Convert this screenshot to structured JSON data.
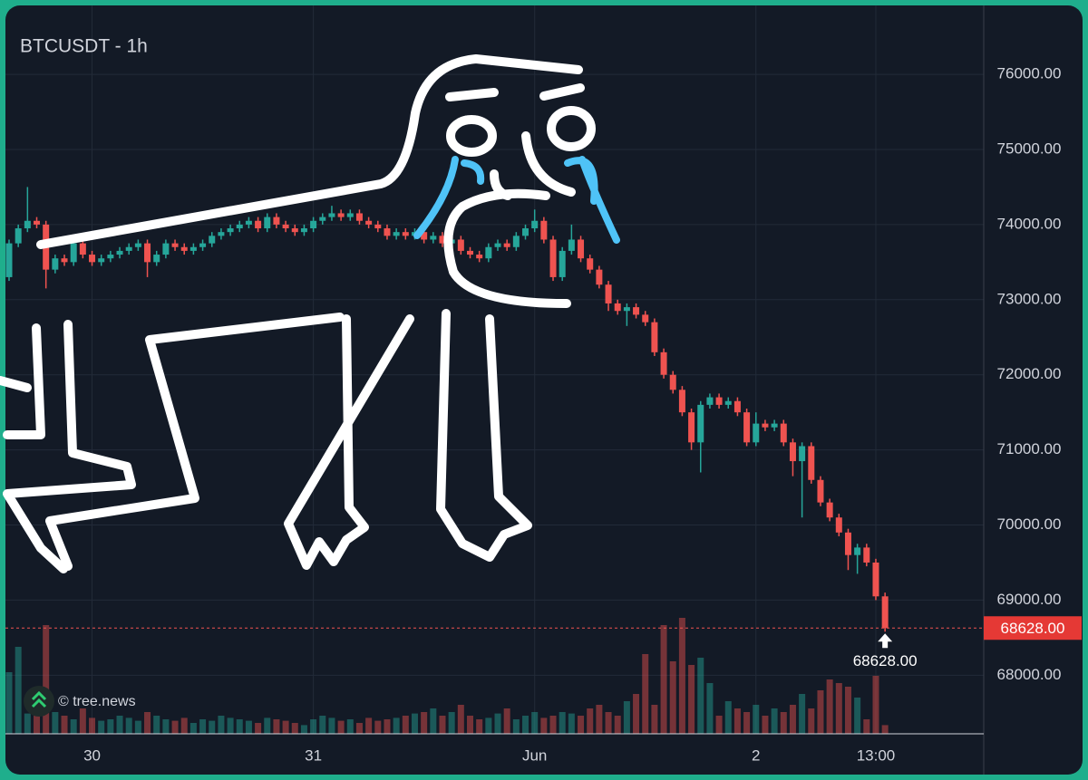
{
  "chart_data": {
    "type": "candlestick",
    "title": "BTCUSDT - 1h",
    "watermark": "© tree.news",
    "categories": [
      null,
      null,
      null,
      null,
      null,
      null,
      null,
      null,
      null,
      "30",
      null,
      null,
      null,
      null,
      null,
      null,
      null,
      null,
      null,
      null,
      null,
      null,
      null,
      null,
      null,
      null,
      null,
      null,
      null,
      null,
      null,
      null,
      null,
      "31",
      null,
      null,
      null,
      null,
      null,
      null,
      null,
      null,
      null,
      null,
      null,
      null,
      null,
      null,
      null,
      null,
      null,
      null,
      null,
      null,
      null,
      null,
      null,
      "Jun",
      null,
      null,
      null,
      null,
      null,
      null,
      null,
      null,
      null,
      null,
      null,
      null,
      null,
      null,
      null,
      null,
      null,
      null,
      null,
      null,
      null,
      null,
      null,
      "2",
      null,
      null,
      null,
      null,
      null,
      null,
      null,
      null,
      null,
      null,
      null,
      null,
      "13:00",
      null
    ],
    "open": [
      73300,
      73750,
      73950,
      74050,
      74000,
      73400,
      73550,
      73500,
      73750,
      73600,
      73500,
      73550,
      73600,
      73650,
      73700,
      73750,
      73500,
      73600,
      73750,
      73700,
      73650,
      73700,
      73750,
      73850,
      73900,
      73950,
      74000,
      74050,
      73950,
      74100,
      74000,
      73950,
      73900,
      73950,
      74050,
      74100,
      74150,
      74100,
      74150,
      74050,
      74000,
      73950,
      73850,
      73900,
      73850,
      73900,
      73800,
      73850,
      73750,
      73800,
      73650,
      73600,
      73550,
      73700,
      73750,
      73700,
      73850,
      73950,
      74050,
      73800,
      73300,
      73650,
      73800,
      73550,
      73400,
      73200,
      72950,
      72850,
      72900,
      72800,
      72700,
      72300,
      72000,
      71800,
      71500,
      71100,
      71600,
      71700,
      71600,
      71650,
      71500,
      71100,
      71350,
      71300,
      71350,
      71100,
      70850,
      71050,
      70600,
      70300,
      70100,
      69900,
      69600,
      69700,
      69500,
      69050
    ],
    "high": [
      73800,
      74000,
      74500,
      74100,
      74050,
      73600,
      73600,
      73800,
      73800,
      73650,
      73600,
      73650,
      73700,
      73750,
      73800,
      73800,
      73650,
      73800,
      73800,
      73750,
      73750,
      73800,
      73900,
      73950,
      74000,
      74050,
      74100,
      74100,
      74150,
      74150,
      74050,
      74000,
      74000,
      74100,
      74150,
      74250,
      74200,
      74200,
      74200,
      74100,
      74050,
      74000,
      73950,
      73950,
      73950,
      73950,
      73900,
      73900,
      73850,
      73850,
      73700,
      73650,
      73750,
      73800,
      73800,
      73900,
      74000,
      74200,
      74100,
      73850,
      73700,
      74000,
      73850,
      73600,
      73450,
      73250,
      73000,
      72950,
      72950,
      72850,
      72750,
      72350,
      72050,
      71850,
      71550,
      71650,
      71750,
      71750,
      71700,
      71700,
      71550,
      71500,
      71400,
      71400,
      71400,
      71150,
      71100,
      71100,
      70650,
      70350,
      70150,
      69950,
      69750,
      69750,
      69550,
      69100
    ],
    "low": [
      73250,
      73700,
      73900,
      73950,
      73150,
      73350,
      73450,
      73450,
      73550,
      73450,
      73450,
      73500,
      73550,
      73600,
      73650,
      73300,
      73450,
      73550,
      73650,
      73600,
      73600,
      73650,
      73700,
      73800,
      73850,
      73900,
      73950,
      73900,
      73900,
      73950,
      73900,
      73850,
      73850,
      73900,
      74000,
      74050,
      74050,
      74050,
      74000,
      73950,
      73900,
      73800,
      73800,
      73800,
      73800,
      73750,
      73750,
      73700,
      73700,
      73600,
      73550,
      73500,
      73500,
      73650,
      73650,
      73650,
      73800,
      73900,
      73750,
      73250,
      73250,
      73600,
      73500,
      73350,
      73150,
      72850,
      72800,
      72650,
      72750,
      72650,
      72250,
      71950,
      71750,
      71450,
      71000,
      70700,
      71550,
      71550,
      71550,
      71450,
      71050,
      71050,
      71250,
      71250,
      71050,
      70650,
      70100,
      70550,
      70250,
      70050,
      69850,
      69400,
      69350,
      69450,
      69000,
      68580
    ],
    "close": [
      73750,
      73950,
      74050,
      74000,
      73400,
      73550,
      73500,
      73750,
      73600,
      73500,
      73550,
      73600,
      73650,
      73700,
      73750,
      73500,
      73600,
      73750,
      73700,
      73650,
      73700,
      73750,
      73850,
      73900,
      73950,
      74000,
      74050,
      73950,
      74100,
      74000,
      73950,
      73900,
      73950,
      74050,
      74100,
      74150,
      74100,
      74150,
      74050,
      74000,
      73950,
      73850,
      73900,
      73850,
      73900,
      73800,
      73850,
      73750,
      73800,
      73650,
      73600,
      73550,
      73700,
      73750,
      73700,
      73850,
      73950,
      74050,
      73800,
      73300,
      73650,
      73800,
      73550,
      73400,
      73200,
      72950,
      72850,
      72900,
      72800,
      72700,
      72300,
      72000,
      71800,
      71500,
      71100,
      71600,
      71700,
      71600,
      71650,
      71500,
      71100,
      71350,
      71300,
      71350,
      71100,
      70850,
      71050,
      70600,
      70300,
      70100,
      69900,
      69600,
      69700,
      69500,
      69050,
      68628
    ],
    "volume": [
      85,
      120,
      28,
      40,
      150,
      30,
      25,
      20,
      35,
      22,
      18,
      20,
      25,
      22,
      18,
      30,
      25,
      20,
      18,
      22,
      15,
      20,
      18,
      25,
      22,
      20,
      18,
      15,
      22,
      20,
      18,
      15,
      12,
      20,
      25,
      22,
      18,
      20,
      15,
      22,
      18,
      20,
      22,
      25,
      28,
      30,
      35,
      25,
      30,
      40,
      25,
      20,
      22,
      28,
      35,
      20,
      25,
      30,
      22,
      25,
      30,
      28,
      25,
      35,
      40,
      30,
      25,
      45,
      55,
      110,
      40,
      150,
      100,
      160,
      95,
      105,
      70,
      25,
      45,
      35,
      30,
      40,
      25,
      35,
      30,
      40,
      55,
      35,
      60,
      75,
      70,
      65,
      50,
      20,
      80,
      12
    ],
    "volume_ylim": [
      0,
      200
    ],
    "up_color": "#26a69a",
    "down_color": "#ef5350",
    "ylim": [
      67220,
      76990
    ],
    "yticks": [
      {
        "value": 68000,
        "label": "68000.00"
      },
      {
        "value": 69000,
        "label": "69000.00"
      },
      {
        "value": 70000,
        "label": "70000.00"
      },
      {
        "value": 71000,
        "label": "71000.00"
      },
      {
        "value": 72000,
        "label": "72000.00"
      },
      {
        "value": 73000,
        "label": "73000.00"
      },
      {
        "value": 74000,
        "label": "74000.00"
      },
      {
        "value": 75000,
        "label": "75000.00"
      },
      {
        "value": 76000,
        "label": "76000.00"
      }
    ],
    "last_price": {
      "value": 68628,
      "label": "68628.00"
    },
    "grid": true
  }
}
